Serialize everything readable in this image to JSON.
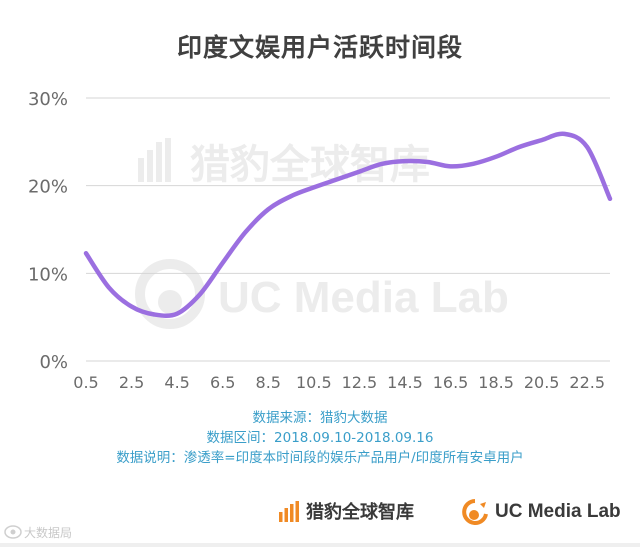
{
  "title": "印度文娱用户活跃时间段",
  "chart_data": {
    "type": "line",
    "title": "印度文娱用户活跃时间段",
    "x": [
      0.5,
      1.5,
      2.5,
      3.5,
      4.5,
      5.5,
      6.5,
      7.5,
      8.5,
      9.5,
      10.5,
      11.5,
      12.5,
      13.5,
      14.5,
      15.5,
      16.5,
      17.5,
      18.5,
      19.5,
      20.5,
      21.5,
      22.5,
      23.5
    ],
    "values": [
      12.3,
      8.4,
      6.2,
      5.3,
      5.4,
      7.6,
      11.2,
      14.7,
      17.3,
      18.8,
      19.8,
      20.7,
      21.6,
      22.5,
      22.8,
      22.7,
      22.2,
      22.5,
      23.3,
      24.4,
      25.2,
      25.9,
      24.4,
      18.5
    ],
    "xticks": [
      "0.5",
      "2.5",
      "4.5",
      "6.5",
      "8.5",
      "10.5",
      "12.5",
      "14.5",
      "16.5",
      "18.5",
      "20.5",
      "22.5"
    ],
    "yticks": [
      "0%",
      "10%",
      "20%",
      "30%"
    ],
    "ylim": [
      0,
      30
    ],
    "xlim": [
      0.5,
      23.5
    ],
    "grid": true,
    "line_color": "#9b6fe0",
    "grid_color": "#d6d6d6"
  },
  "notes": {
    "source": "数据来源：猎豹大数据",
    "range": "数据区间：2018.09.10-2018.09.16",
    "explanation": "数据说明：渗透率=印度本时间段的娱乐产品用户/印度所有安卓用户"
  },
  "watermarks": {
    "cheetah": "猎豹全球智库",
    "uc": "UC Media Lab"
  },
  "brands": {
    "cheetah": "猎豹全球智库",
    "uc": "UC Media Lab"
  },
  "corner_mark": "大数据局",
  "colors": {
    "accent": "#9b6fe0",
    "notes": "#3a9ec9",
    "brand_orange": "#f08a24"
  }
}
